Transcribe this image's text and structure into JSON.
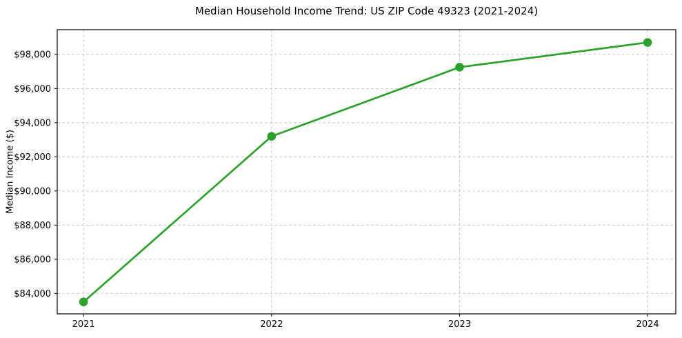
{
  "chart_data": {
    "type": "line",
    "title": "Median Household Income Trend: US ZIP Code 49323 (2021-2024)",
    "ylabel": "Median Income ($)",
    "xlabel": "",
    "x": [
      2021,
      2022,
      2023,
      2024
    ],
    "values": [
      83500,
      93200,
      97250,
      98700
    ],
    "series": [
      {
        "name": "Median Household Income",
        "values": [
          83500,
          93200,
          97250,
          98700
        ]
      }
    ],
    "x_tick_labels": [
      "2021",
      "2022",
      "2023",
      "2024"
    ],
    "y_ticks": [
      84000,
      86000,
      88000,
      90000,
      92000,
      94000,
      96000,
      98000
    ],
    "y_tick_labels": [
      "$84,000",
      "$86,000",
      "$88,000",
      "$90,000",
      "$92,000",
      "$94,000",
      "$96,000",
      "$98,000"
    ],
    "xlim": [
      2020.86,
      2024.15
    ],
    "ylim": [
      82800,
      99450
    ],
    "grid": true,
    "grid_style": "dashed",
    "legend": "none",
    "line_color": "#2ca02c",
    "marker": "circle",
    "grid_color": "#c9c9c9",
    "spine_color": "#000000",
    "background_color": "#ffffff"
  }
}
